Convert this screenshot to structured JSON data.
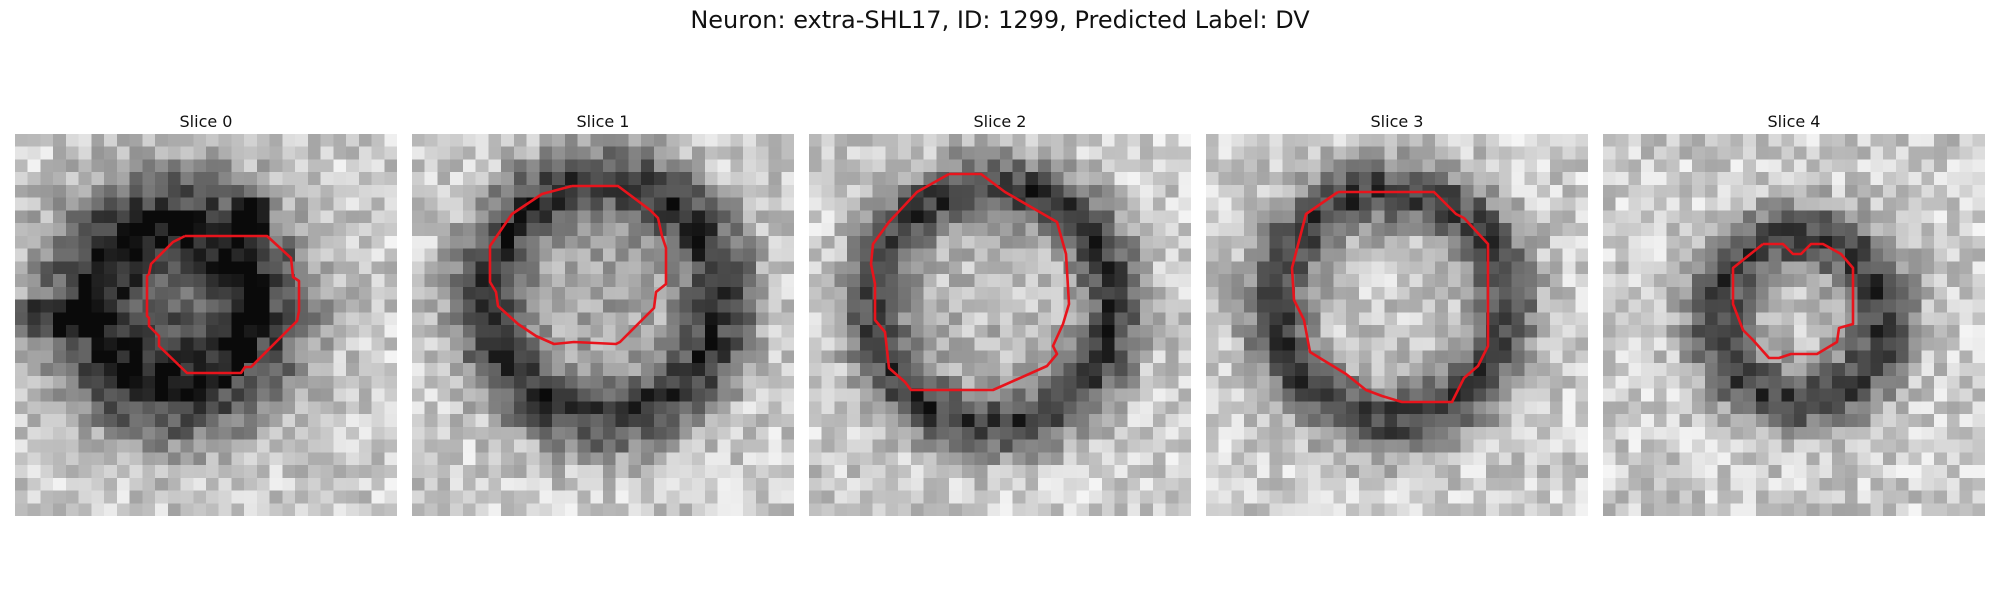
{
  "figure": {
    "title": "Neuron: extra-SHL17, ID: 1299, Predicted Label: DV",
    "colors": {
      "contour": "#e8141c",
      "background": "#ffffff"
    },
    "panels": [
      {
        "title": "Slice 0"
      },
      {
        "title": "Slice 1"
      },
      {
        "title": "Slice 2"
      },
      {
        "title": "Slice 3"
      },
      {
        "title": "Slice 4"
      }
    ]
  }
}
